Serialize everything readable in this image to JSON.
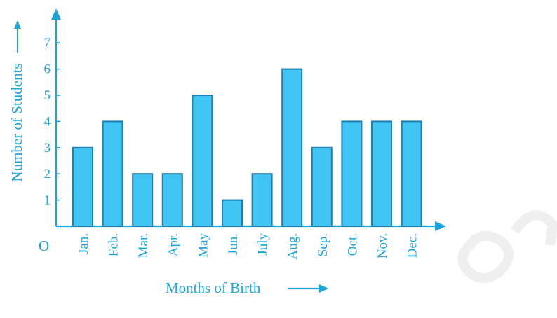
{
  "chart_data": {
    "type": "bar",
    "categories": [
      "Jan.",
      "Feb.",
      "Mar.",
      "Apr.",
      "May",
      "Jun.",
      "July",
      "Aug.",
      "Sep.",
      "Oct.",
      "Nov.",
      "Dec."
    ],
    "values": [
      3,
      4,
      2,
      2,
      5,
      1,
      2,
      6,
      3,
      4,
      4,
      4
    ],
    "title": "",
    "xlabel": "Months of Birth",
    "ylabel": "Number of Students",
    "ylim": [
      0,
      7
    ],
    "yticks": [
      1,
      2,
      3,
      4,
      5,
      6,
      7
    ],
    "origin_label": "O",
    "grid": false,
    "legend": "none",
    "colors": {
      "axis": "#1ba5dd",
      "bar_fill": "#40c4f4",
      "bar_stroke": "#1f7fb0"
    }
  }
}
